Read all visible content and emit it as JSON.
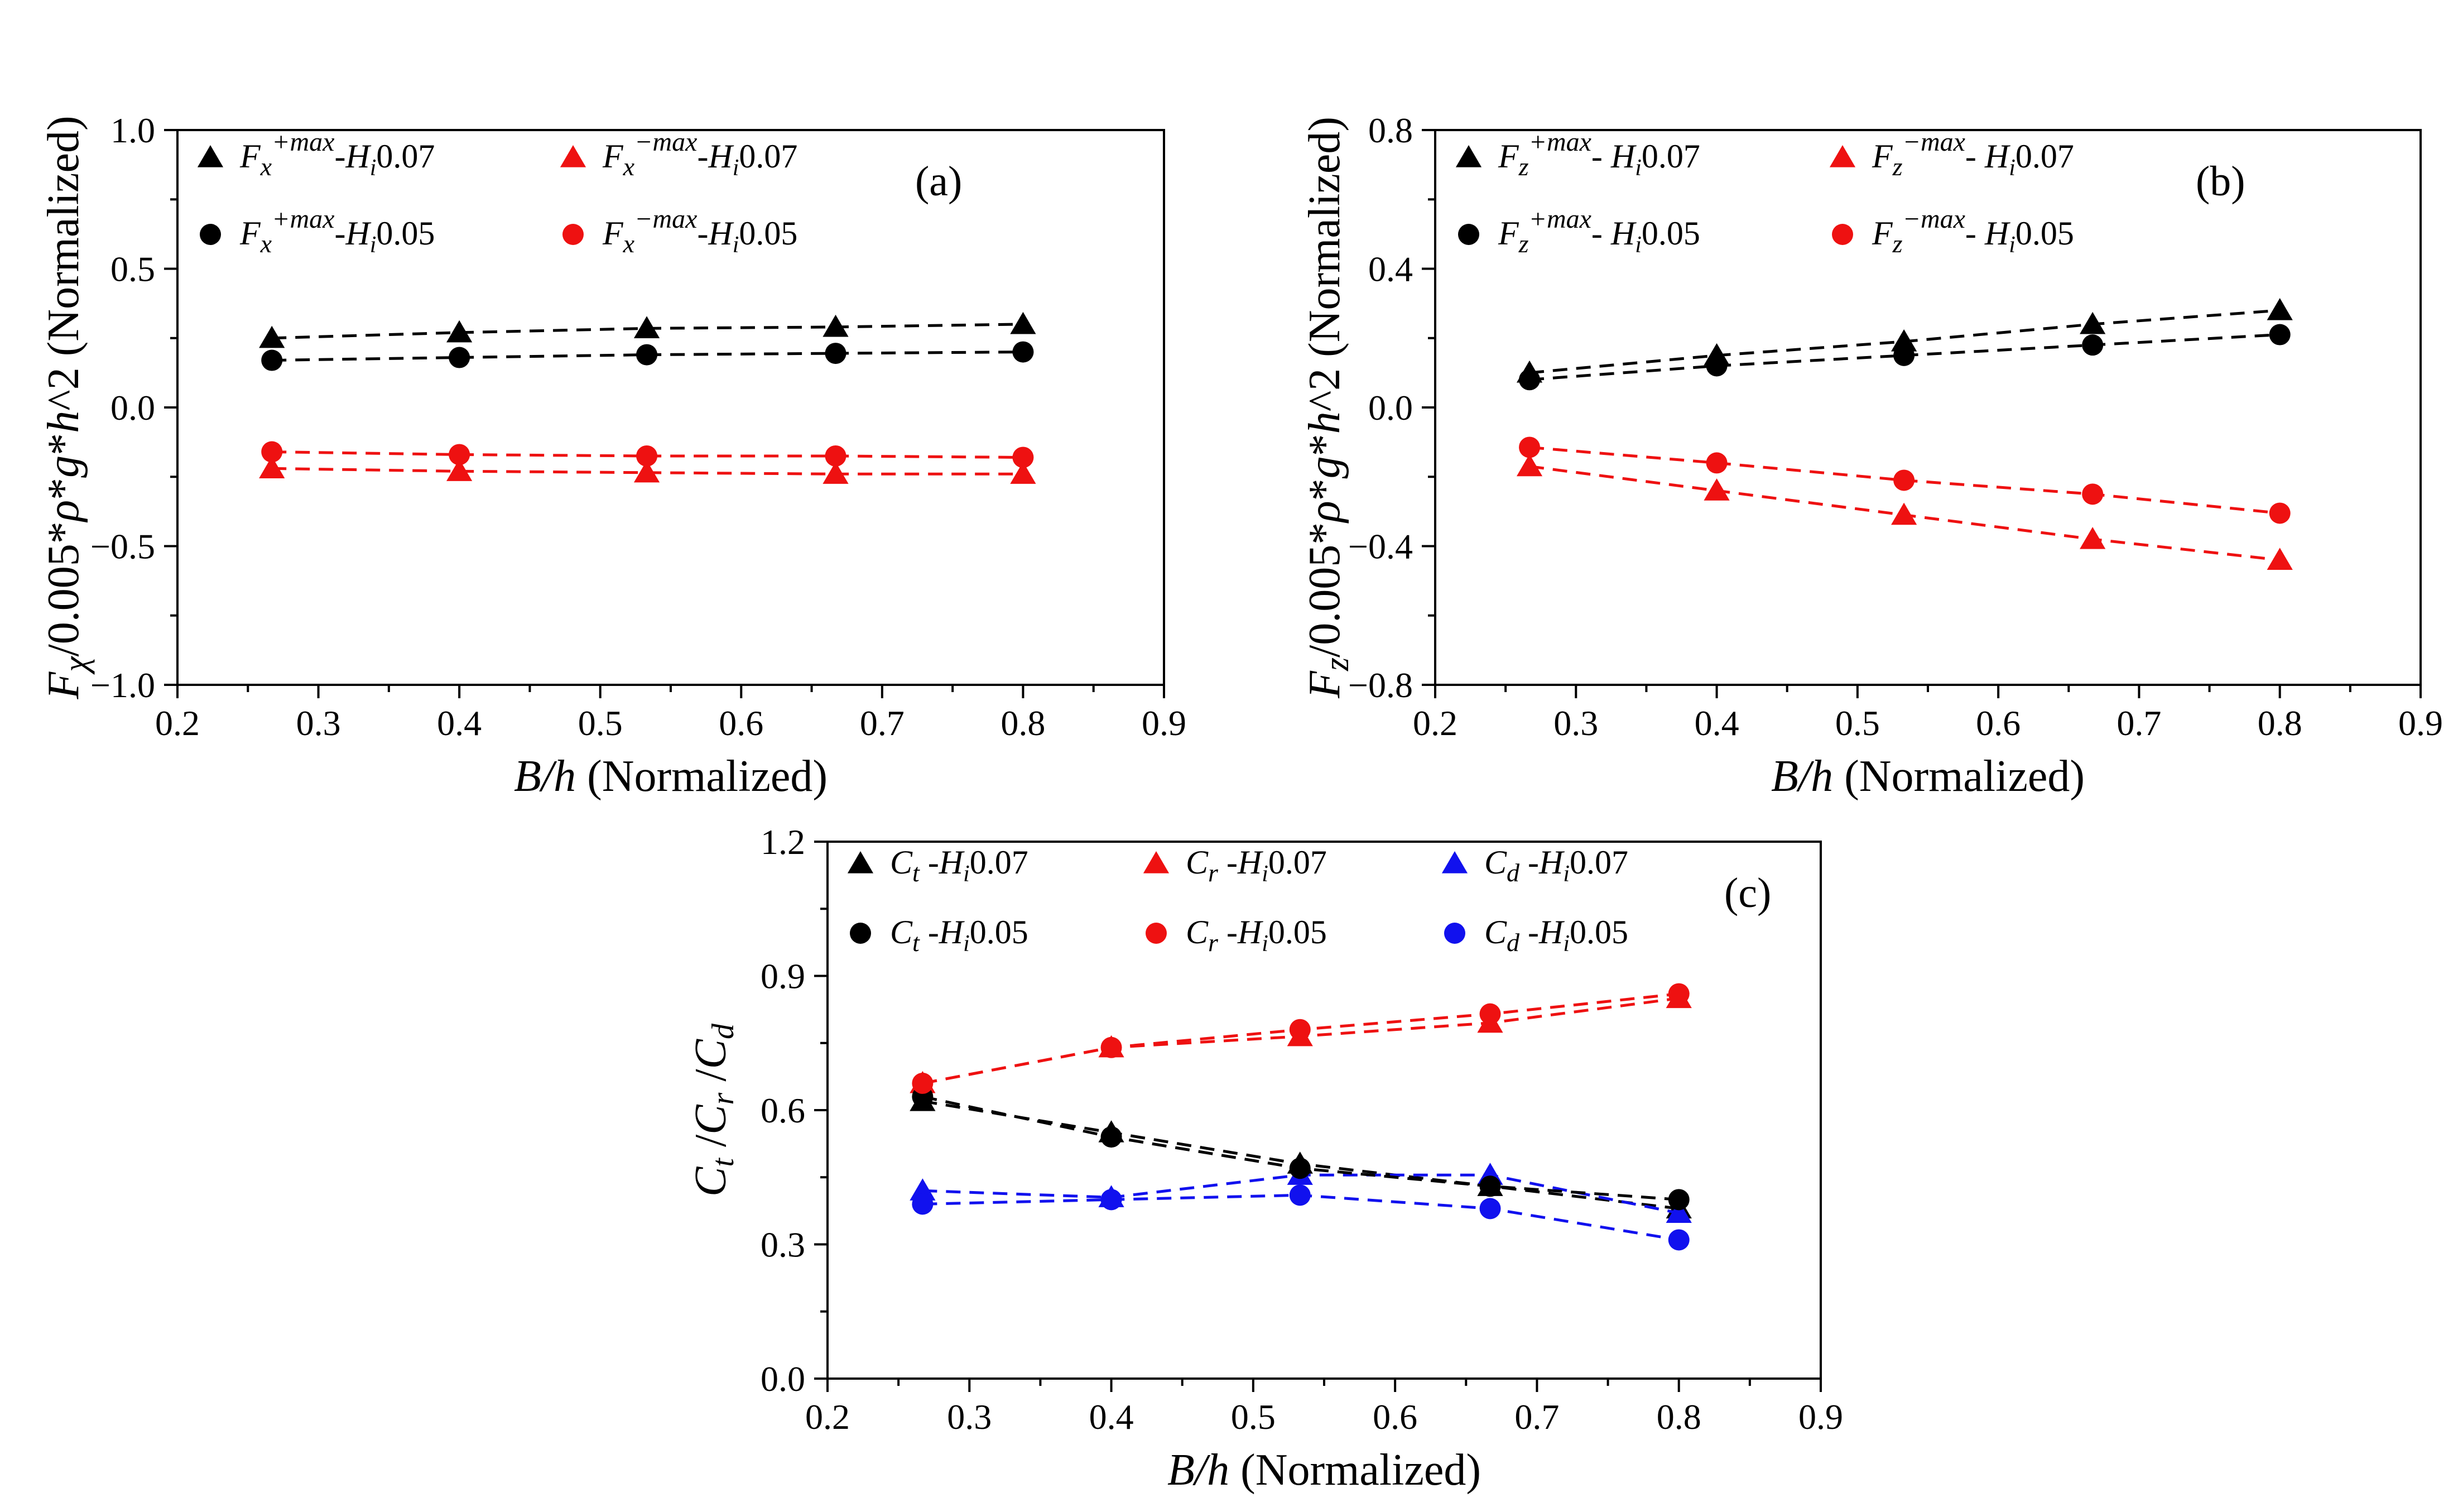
{
  "chart_data": [
    {
      "id": "a",
      "type": "scatter",
      "panel_label": "(a)",
      "xlabel_italic": "B/h",
      "xlabel_rest": " (Normalized)",
      "ylabel": "Fχ/0.005*ρ*g*h^2 (Normalized)",
      "xlim": [
        0.2,
        0.9
      ],
      "ylim": [
        -1.0,
        1.0
      ],
      "xticks": [
        "0.2",
        "0.3",
        "0.4",
        "0.5",
        "0.6",
        "0.7",
        "0.8",
        "0.9"
      ],
      "yticks": [
        "−1.0",
        "−0.5",
        "0.0",
        "0.5",
        "1.0"
      ],
      "ytick_values": [
        -1.0,
        -0.5,
        0.0,
        0.5,
        1.0
      ],
      "legend_position": "top",
      "x": [
        0.267,
        0.4,
        0.533,
        0.667,
        0.8
      ],
      "series": [
        {
          "name": "Fx+max-Hi0.07",
          "base": "F",
          "sub": "x",
          "sup": "+max",
          "tail": "-H",
          "sub2": "i",
          "end": "0.07",
          "marker": "triangle",
          "color": "#000000",
          "values": [
            0.25,
            0.27,
            0.285,
            0.29,
            0.3
          ]
        },
        {
          "name": "Fx−max-Hi0.07",
          "base": "F",
          "sub": "x",
          "sup": "−max",
          "tail": "-H",
          "sub2": "i",
          "end": "0.07",
          "marker": "triangle",
          "color": "#ee1111",
          "values": [
            -0.22,
            -0.23,
            -0.235,
            -0.24,
            -0.24
          ]
        },
        {
          "name": "Fx+max-Hi0.05",
          "base": "F",
          "sub": "x",
          "sup": "+max",
          "tail": "-H",
          "sub2": "i",
          "end": "0.05",
          "marker": "circle",
          "color": "#000000",
          "values": [
            0.17,
            0.18,
            0.19,
            0.195,
            0.2
          ]
        },
        {
          "name": "Fx−max-Hi0.05",
          "base": "F",
          "sub": "x",
          "sup": "−max",
          "tail": "-H",
          "sub2": "i",
          "end": "0.05",
          "marker": "circle",
          "color": "#ee1111",
          "values": [
            -0.16,
            -0.17,
            -0.175,
            -0.175,
            -0.18
          ]
        }
      ]
    },
    {
      "id": "b",
      "type": "scatter",
      "panel_label": "(b)",
      "xlabel_italic": "B/h",
      "xlabel_rest": " (Normalized)",
      "ylabel": "Fz/0.005*ρ*g*h^2 (Normalized)",
      "xlim": [
        0.2,
        0.9
      ],
      "ylim": [
        -0.8,
        0.8
      ],
      "xticks": [
        "0.2",
        "0.3",
        "0.4",
        "0.5",
        "0.6",
        "0.7",
        "0.8",
        "0.9"
      ],
      "yticks": [
        "−0.8",
        "−0.4",
        "0.0",
        "0.4",
        "0.8"
      ],
      "ytick_values": [
        -0.8,
        -0.4,
        0.0,
        0.4,
        0.8
      ],
      "legend_position": "top",
      "x": [
        0.267,
        0.4,
        0.533,
        0.667,
        0.8
      ],
      "series": [
        {
          "name": "Fz+max- Hi0.07",
          "base": "F",
          "sub": "z",
          "sup": "+max",
          "tail": "- H",
          "sub2": "i",
          "end": "0.07",
          "marker": "triangle",
          "color": "#000000",
          "values": [
            0.1,
            0.15,
            0.19,
            0.24,
            0.28
          ]
        },
        {
          "name": "Fz−max- Hi0.07",
          "base": "F",
          "sub": "z",
          "sup": "−max",
          "tail": "- H",
          "sub2": "i",
          "end": "0.07",
          "marker": "triangle",
          "color": "#ee1111",
          "values": [
            -0.17,
            -0.24,
            -0.31,
            -0.38,
            -0.44
          ]
        },
        {
          "name": "Fz+max- Hi0.05",
          "base": "F",
          "sub": "z",
          "sup": "+max",
          "tail": "- H",
          "sub2": "i",
          "end": "0.05",
          "marker": "circle",
          "color": "#000000",
          "values": [
            0.08,
            0.12,
            0.15,
            0.18,
            0.21
          ]
        },
        {
          "name": "Fz−max- Hi0.05",
          "base": "F",
          "sub": "z",
          "sup": "−max",
          "tail": "- H",
          "sub2": "i",
          "end": "0.05",
          "marker": "circle",
          "color": "#ee1111",
          "values": [
            -0.115,
            -0.16,
            -0.21,
            -0.25,
            -0.305
          ]
        }
      ]
    },
    {
      "id": "c",
      "type": "scatter",
      "panel_label": "(c)",
      "xlabel_italic": "B/h",
      "xlabel_rest": " (Normalized)",
      "ylabel": "Ct /Cr /Cd",
      "xlim": [
        0.2,
        0.9
      ],
      "ylim": [
        0.0,
        1.2
      ],
      "xticks": [
        "0.2",
        "0.3",
        "0.4",
        "0.5",
        "0.6",
        "0.7",
        "0.8",
        "0.9"
      ],
      "yticks": [
        "0.0",
        "0.3",
        "0.6",
        "0.9",
        "1.2"
      ],
      "ytick_values": [
        0.0,
        0.3,
        0.6,
        0.9,
        1.2
      ],
      "legend_position": "top",
      "x": [
        0.267,
        0.4,
        0.533,
        0.667,
        0.8
      ],
      "series": [
        {
          "name": "Ct -Hi0.07",
          "base": "C",
          "sub": "t",
          "sup": "",
          "tail": " -H",
          "sub2": "i",
          "end": "0.07",
          "marker": "triangle",
          "color": "#000000",
          "values": [
            0.62,
            0.55,
            0.48,
            0.43,
            0.38
          ]
        },
        {
          "name": "Cr -Hi0.07",
          "base": "C",
          "sub": "r",
          "sup": "",
          "tail": " -H",
          "sub2": "i",
          "end": "0.07",
          "marker": "triangle",
          "color": "#ee1111",
          "values": [
            0.66,
            0.74,
            0.765,
            0.795,
            0.85
          ]
        },
        {
          "name": "Cd -Hi0.07",
          "base": "C",
          "sub": "d",
          "sup": "",
          "tail": " -H",
          "sub2": "i",
          "end": "0.07",
          "marker": "triangle",
          "color": "#1111ee",
          "values": [
            0.42,
            0.405,
            0.455,
            0.455,
            0.37
          ]
        },
        {
          "name": "Ct -Hi0.05",
          "base": "C",
          "sub": "t",
          "sup": "",
          "tail": " -H",
          "sub2": "i",
          "end": "0.05",
          "marker": "circle",
          "color": "#000000",
          "values": [
            0.63,
            0.54,
            0.47,
            0.43,
            0.4
          ]
        },
        {
          "name": "Cr -Hi0.05",
          "base": "C",
          "sub": "r",
          "sup": "",
          "tail": " -H",
          "sub2": "i",
          "end": "0.05",
          "marker": "circle",
          "color": "#ee1111",
          "values": [
            0.66,
            0.74,
            0.78,
            0.815,
            0.86
          ]
        },
        {
          "name": "Cd -Hi0.05",
          "base": "C",
          "sub": "d",
          "sup": "",
          "tail": " -H",
          "sub2": "i",
          "end": "0.05",
          "marker": "circle",
          "color": "#1111ee",
          "values": [
            0.39,
            0.4,
            0.41,
            0.38,
            0.31
          ]
        }
      ]
    }
  ]
}
